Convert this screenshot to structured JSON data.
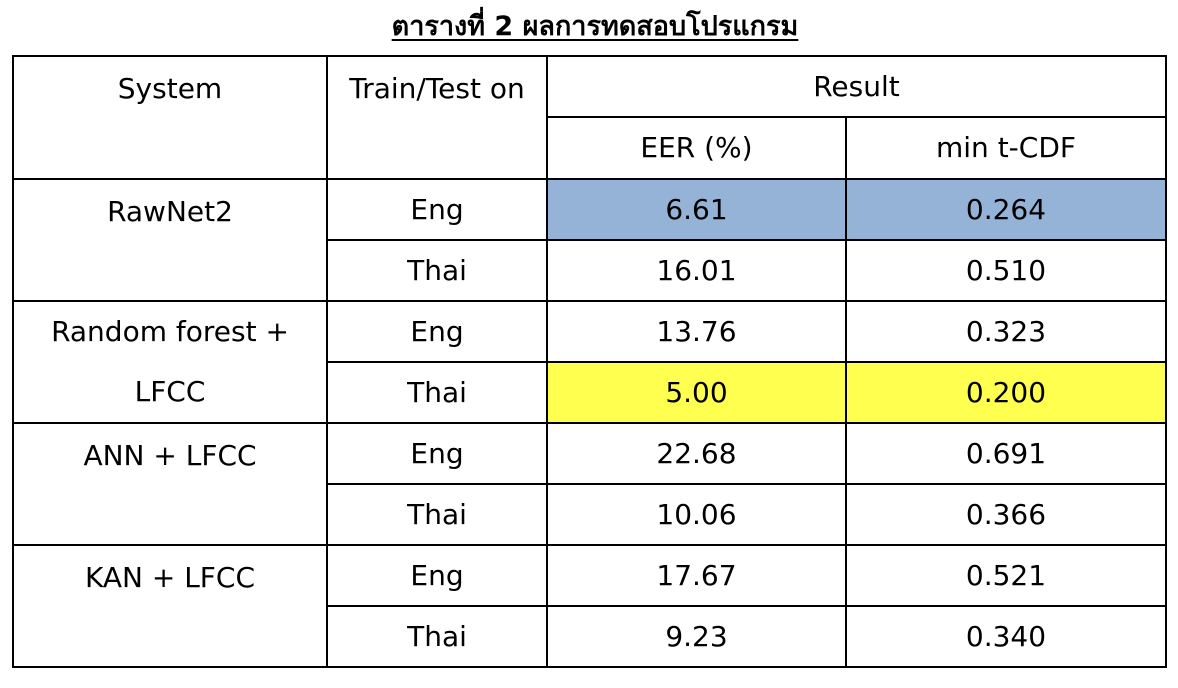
{
  "title": "ตารางที่ 2 ผลการทดสอบโปรแกรม",
  "headers": {
    "system": "System",
    "train_test": "Train/Test on",
    "result": "Result",
    "eer": "EER (%)",
    "tdcf": "min t-CDF"
  },
  "rows": [
    {
      "system": "RawNet2",
      "lang": "Eng",
      "eer": "6.61",
      "tdcf": "0.264",
      "highlight": "#95b3d7"
    },
    {
      "system": "",
      "lang": "Thai",
      "eer": "16.01",
      "tdcf": "0.510"
    },
    {
      "system": "Random forest +",
      "lang": "Eng",
      "eer": "13.76",
      "tdcf": "0.323"
    },
    {
      "system": "LFCC",
      "lang": "Thai",
      "eer": "5.00",
      "tdcf": "0.200",
      "highlight": "#ffff4f"
    },
    {
      "system": "ANN + LFCC",
      "lang": "Eng",
      "eer": "22.68",
      "tdcf": "0.691"
    },
    {
      "system": "",
      "lang": "Thai",
      "eer": "10.06",
      "tdcf": "0.366"
    },
    {
      "system": "KAN + LFCC",
      "lang": "Eng",
      "eer": "17.67",
      "tdcf": "0.521"
    },
    {
      "system": "",
      "lang": "Thai",
      "eer": "9.23",
      "tdcf": "0.340"
    }
  ]
}
